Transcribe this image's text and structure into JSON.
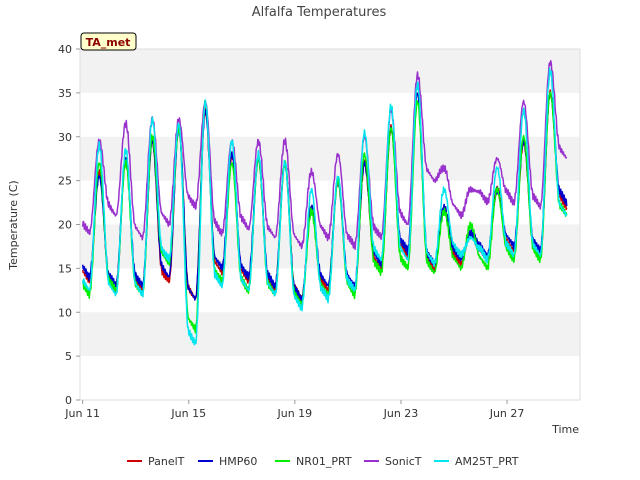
{
  "chart_data": {
    "type": "line",
    "title": "Alfalfa Temperatures",
    "xlabel": "Time",
    "ylabel": "Temperature (C)",
    "badge": "TA_met",
    "x_unit": "day of June",
    "xlim": [
      10.9,
      29.75
    ],
    "ylim": [
      0,
      40
    ],
    "yticks": [
      0,
      5,
      10,
      15,
      20,
      25,
      30,
      35,
      40
    ],
    "xticks": [
      {
        "value": 11,
        "label": "Jun 11"
      },
      {
        "value": 15,
        "label": "Jun 15"
      },
      {
        "value": 19,
        "label": "Jun 19"
      },
      {
        "value": 23,
        "label": "Jun 23"
      },
      {
        "value": 27,
        "label": "Jun 27"
      }
    ],
    "grid": "horizontal bands",
    "legend_position": "bottom",
    "days": [
      11,
      12,
      13,
      14,
      15,
      16,
      17,
      18,
      19,
      20,
      21,
      22,
      23,
      24,
      25,
      26,
      27,
      28,
      29
    ],
    "series": [
      {
        "name": "PanelT",
        "color": "#cc0000",
        "min": [
          13.5,
          12.5,
          12.5,
          13.5,
          11.5,
          14.5,
          13.5,
          12.5,
          11.5,
          12.5,
          12.5,
          15.0,
          16.5,
          15.0,
          15.5,
          16.0,
          17.0,
          16.5,
          22.0
        ],
        "max": [
          26.0,
          27.5,
          29.5,
          31.0,
          33.0,
          28.0,
          27.5,
          27.0,
          22.0,
          25.0,
          27.0,
          31.0,
          35.0,
          22.0,
          19.0,
          24.0,
          29.5,
          35.0,
          35.0
        ]
      },
      {
        "name": "HMP60",
        "color": "#0000cc",
        "min": [
          14.0,
          13.0,
          13.0,
          14.0,
          11.5,
          15.0,
          14.0,
          13.0,
          11.5,
          13.0,
          13.0,
          15.5,
          17.0,
          15.5,
          16.0,
          16.5,
          17.5,
          17.0,
          22.5
        ],
        "max": [
          25.5,
          27.5,
          29.5,
          31.0,
          33.0,
          28.0,
          27.5,
          27.0,
          22.0,
          25.0,
          27.0,
          31.0,
          35.0,
          22.0,
          19.0,
          24.0,
          29.5,
          35.0,
          35.0
        ]
      },
      {
        "name": "NR01_PRT",
        "color": "#00ee00",
        "min": [
          12.0,
          12.5,
          12.0,
          15.5,
          8.0,
          13.5,
          12.5,
          12.0,
          11.0,
          12.0,
          12.0,
          14.5,
          15.0,
          14.5,
          15.0,
          15.0,
          16.0,
          16.0,
          21.0
        ],
        "max": [
          27.0,
          27.0,
          30.0,
          31.0,
          34.0,
          27.0,
          27.5,
          27.0,
          21.5,
          25.0,
          28.0,
          31.0,
          34.0,
          21.5,
          20.0,
          24.0,
          30.0,
          35.0,
          35.0
        ]
      },
      {
        "name": "SonicT",
        "color": "#9932cc",
        "min": [
          19.0,
          21.0,
          18.5,
          20.0,
          22.0,
          19.0,
          19.5,
          18.5,
          17.5,
          18.5,
          17.5,
          18.5,
          20.0,
          25.0,
          21.0,
          22.5,
          22.5,
          22.0,
          27.5
        ],
        "max": [
          29.5,
          31.5,
          32.0,
          32.0,
          34.0,
          29.5,
          29.5,
          29.5,
          26.0,
          28.0,
          30.0,
          33.0,
          37.0,
          26.5,
          24.0,
          27.5,
          34.0,
          38.5,
          38.5
        ]
      },
      {
        "name": "AM25T_PRT",
        "color": "#00e5ee",
        "min": [
          12.5,
          12.0,
          12.0,
          16.0,
          6.5,
          13.0,
          12.5,
          12.0,
          10.5,
          11.5,
          12.5,
          16.0,
          16.0,
          15.5,
          16.5,
          16.0,
          16.5,
          16.5,
          21.0
        ],
        "max": [
          29.0,
          28.5,
          32.0,
          31.5,
          34.0,
          29.5,
          28.0,
          27.0,
          24.0,
          25.5,
          30.5,
          33.5,
          36.0,
          24.0,
          18.5,
          26.5,
          33.0,
          37.5,
          37.5
        ]
      }
    ]
  }
}
